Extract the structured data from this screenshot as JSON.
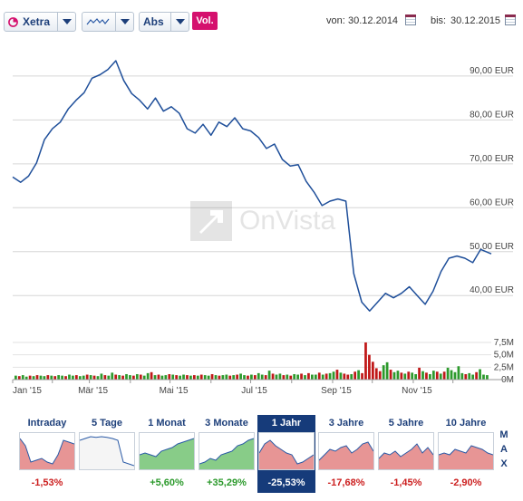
{
  "toolbar": {
    "exchange": "Xetra",
    "chart_style_icon": "line-chart-icon",
    "scale": "Abs",
    "volume_button": "Vol.",
    "from_label": "von:",
    "from_date": "30.12.2014",
    "to_label": "bis:",
    "to_date": "30.12.2015",
    "accent_color": "#d5116e"
  },
  "watermark": "OnVista",
  "chart_data": [
    {
      "type": "line",
      "x_range": [
        "2015-01-02",
        "2015-12-30"
      ],
      "x_tick_labels": [
        "Jan '15",
        "Mär '15",
        "Mai '15",
        "Jul '15",
        "Sep '15",
        "Nov '15"
      ],
      "y_tick_labels": [
        "40,00 EUR",
        "50,00 EUR",
        "60,00 EUR",
        "70,00 EUR",
        "80,00 EUR",
        "90,00 EUR"
      ],
      "y_ticks": [
        40,
        50,
        60,
        70,
        80,
        90
      ],
      "ylim": [
        32,
        97
      ],
      "grid": true,
      "line_color": "#1f4f9a",
      "series": [
        {
          "x": [
            "2015-01-02",
            "2015-01-08",
            "2015-01-14",
            "2015-01-20",
            "2015-01-26",
            "2015-02-01",
            "2015-02-07",
            "2015-02-13",
            "2015-02-19",
            "2015-02-25",
            "2015-03-03",
            "2015-03-09",
            "2015-03-15",
            "2015-03-21",
            "2015-03-27",
            "2015-04-02",
            "2015-04-08",
            "2015-04-14",
            "2015-04-20",
            "2015-04-26",
            "2015-05-02",
            "2015-05-08",
            "2015-05-14",
            "2015-05-20",
            "2015-05-26",
            "2015-06-01",
            "2015-06-07",
            "2015-06-13",
            "2015-06-19",
            "2015-06-25",
            "2015-07-01",
            "2015-07-07",
            "2015-07-13",
            "2015-07-19",
            "2015-07-25",
            "2015-07-31",
            "2015-08-06",
            "2015-08-12",
            "2015-08-18",
            "2015-08-24",
            "2015-08-30",
            "2015-09-05",
            "2015-09-11",
            "2015-09-17",
            "2015-09-23",
            "2015-09-29",
            "2015-10-05",
            "2015-10-11",
            "2015-10-17",
            "2015-10-23",
            "2015-10-29",
            "2015-11-04",
            "2015-11-10",
            "2015-11-16",
            "2015-11-22",
            "2015-11-28",
            "2015-12-04",
            "2015-12-10",
            "2015-12-16",
            "2015-12-22",
            "2015-12-30"
          ],
          "y": [
            67.0,
            65.8,
            67.2,
            70.2,
            75.5,
            78.0,
            79.5,
            82.5,
            84.5,
            86.2,
            89.5,
            90.3,
            91.5,
            93.5,
            89.0,
            86.0,
            84.5,
            82.5,
            85.0,
            82.0,
            83.0,
            81.5,
            78.0,
            77.0,
            79.0,
            76.5,
            79.5,
            78.5,
            80.5,
            78.0,
            77.5,
            76.0,
            73.5,
            74.5,
            71.0,
            69.5,
            69.8,
            66.0,
            63.5,
            60.5,
            61.5,
            62.0,
            61.5,
            45.0,
            38.5,
            36.5,
            38.5,
            40.5,
            39.5,
            40.5,
            42.0,
            40.0,
            38.0,
            41.0,
            45.5,
            48.5,
            49.0,
            48.5,
            47.5,
            50.5,
            49.5
          ]
        }
      ]
    },
    {
      "type": "bar",
      "title": "",
      "y_tick_labels": [
        "7,5M",
        "5,0M",
        "2,5M",
        "0M"
      ],
      "y_ticks": [
        7.5,
        5.0,
        2.5,
        0
      ],
      "ylim": [
        0,
        7.5
      ],
      "colors": {
        "up": "#2c9a2c",
        "down": "#c01818"
      },
      "series": [
        {
          "values": [
            0.8,
            0.7,
            0.9,
            0.6,
            0.8,
            0.7,
            0.9,
            0.8,
            0.7,
            0.9,
            0.8,
            0.7,
            0.9,
            0.8,
            0.7,
            1.0,
            0.8,
            0.9,
            0.7,
            0.8,
            1.0,
            0.9,
            0.8,
            0.7,
            1.2,
            0.9,
            0.8,
            1.4,
            1.0,
            0.9,
            0.8,
            1.1,
            0.9,
            0.8,
            1.1,
            1.0,
            0.8,
            1.3,
            1.5,
            0.9,
            1.0,
            0.8,
            0.9,
            1.1,
            1.0,
            0.9,
            0.8,
            1.0,
            0.9,
            0.8,
            0.9,
            0.8,
            1.0,
            0.9,
            0.8,
            1.1,
            0.9,
            0.8,
            0.9,
            1.0,
            0.8,
            0.9,
            1.0,
            1.2,
            0.9,
            0.8,
            1.0,
            0.9,
            1.3,
            1.0,
            0.9,
            1.8,
            1.2,
            1.0,
            1.2,
            0.9,
            1.0,
            0.8,
            1.1,
            1.0,
            1.2,
            0.9,
            1.3,
            1.0,
            1.0,
            1.4,
            1.0,
            1.2,
            1.3,
            1.6,
            2.0,
            1.4,
            1.2,
            1.0,
            1.1,
            1.6,
            1.9,
            1.3,
            7.5,
            5.0,
            3.6,
            2.3,
            1.7,
            2.9,
            3.5,
            2.0,
            1.5,
            1.8,
            1.4,
            1.2,
            1.6,
            1.4,
            1.1,
            2.4,
            1.7,
            1.4,
            1.1,
            1.8,
            1.6,
            1.2,
            1.6,
            2.4,
            1.9,
            1.5,
            2.7,
            1.3,
            1.1,
            1.3,
            1.0,
            1.5,
            2.1,
            1.0,
            0.9
          ],
          "up": [
            1,
            0,
            1,
            1,
            0,
            1,
            0,
            1,
            1,
            0,
            1,
            0,
            1,
            1,
            0,
            1,
            1,
            0,
            1,
            1,
            0,
            1,
            0,
            1,
            1,
            0,
            1,
            1,
            0,
            1,
            0,
            1,
            1,
            0,
            1,
            0,
            1,
            1,
            0,
            1,
            0,
            1,
            1,
            0,
            1,
            0,
            1,
            1,
            0,
            1,
            0,
            1,
            0,
            1,
            1,
            0,
            1,
            0,
            1,
            1,
            0,
            1,
            0,
            1,
            1,
            0,
            1,
            0,
            1,
            1,
            0,
            1,
            0,
            1,
            1,
            0,
            1,
            0,
            1,
            1,
            0,
            1,
            0,
            1,
            1,
            0,
            1,
            0,
            1,
            1,
            0,
            1,
            0,
            0,
            1,
            0,
            1,
            0,
            0,
            0,
            0,
            0,
            0,
            1,
            1,
            0,
            1,
            1,
            0,
            1,
            0,
            1,
            1,
            0,
            1,
            0,
            1,
            1,
            0,
            1,
            0,
            1,
            1,
            1,
            1,
            1,
            0,
            1,
            1,
            0,
            1,
            1,
            1
          ]
        }
      ]
    }
  ],
  "periods": [
    {
      "label": "Intraday",
      "change": "-1,53%",
      "sign": "neg",
      "thumb_color": "#e48a8a",
      "thumb_line": "#2a5aa6",
      "active": false
    },
    {
      "label": "5 Tage",
      "change": "",
      "sign": "neg",
      "thumb_color": "#f4f4f4",
      "thumb_line": "#2a5aa6",
      "active": false
    },
    {
      "label": "1 Monat",
      "change": "+5,60%",
      "sign": "pos",
      "thumb_color": "#7bc77b",
      "thumb_line": "#2a5aa6",
      "active": false
    },
    {
      "label": "3 Monate",
      "change": "+35,29%",
      "sign": "pos",
      "thumb_color": "#7bc77b",
      "thumb_line": "#2a5aa6",
      "active": false
    },
    {
      "label": "1 Jahr",
      "change": "-25,53%",
      "sign": "neg",
      "thumb_color": "#e48a8a",
      "thumb_line": "#2a5aa6",
      "active": true
    },
    {
      "label": "3 Jahre",
      "change": "-17,68%",
      "sign": "neg",
      "thumb_color": "#e48a8a",
      "thumb_line": "#2a5aa6",
      "active": false
    },
    {
      "label": "5 Jahre",
      "change": "-1,45%",
      "sign": "neg",
      "thumb_color": "#e48a8a",
      "thumb_line": "#2a5aa6",
      "active": false
    },
    {
      "label": "10 Jahre",
      "change": "-2,90%",
      "sign": "neg",
      "thumb_color": "#e48a8a",
      "thumb_line": "#2a5aa6",
      "active": false
    }
  ],
  "max_label": [
    "M",
    "A",
    "X"
  ]
}
